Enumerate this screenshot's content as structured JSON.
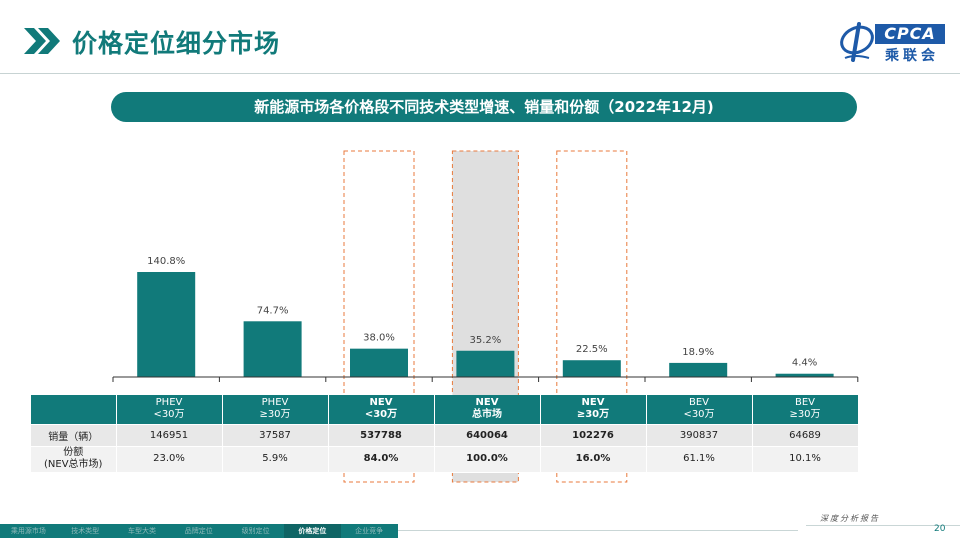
{
  "header": {
    "title": "价格定位细分市场",
    "logo_text": "CPCA",
    "logo_cn": "乘联会"
  },
  "banner": {
    "text": "新能源市场各价格段不同技术类型增速、销量和份额（2022年12月)"
  },
  "chart_data": {
    "type": "bar",
    "title": "",
    "categories": [
      "PHEV\n<30万",
      "PHEV\n≥30万",
      "NEV\n<30万",
      "NEV\n总市场",
      "NEV\n≥30万",
      "BEV\n<30万",
      "BEV\n≥30万"
    ],
    "values": [
      140.8,
      74.7,
      38.0,
      35.2,
      22.5,
      18.9,
      4.4
    ],
    "data_labels": [
      "140.8%",
      "74.7%",
      "38.0%",
      "35.2%",
      "22.5%",
      "18.9%",
      "4.4%"
    ],
    "unit": "%",
    "ylim": [
      0,
      160
    ],
    "grid": false,
    "highlight_dashed": [
      2,
      4
    ],
    "highlight_shaded": [
      3
    ],
    "bar_color": "#117a7a",
    "highlight_color": "#e87a3c"
  },
  "table": {
    "headers": [
      {
        "line1": "PHEV",
        "line2": "<30万",
        "bold": false
      },
      {
        "line1": "PHEV",
        "line2": "≥30万",
        "bold": false
      },
      {
        "line1": "NEV",
        "line2": "<30万",
        "bold": true
      },
      {
        "line1": "NEV",
        "line2": "总市场",
        "bold": true
      },
      {
        "line1": "NEV",
        "line2": "≥30万",
        "bold": true
      },
      {
        "line1": "BEV",
        "line2": "<30万",
        "bold": false
      },
      {
        "line1": "BEV",
        "line2": "≥30万",
        "bold": false
      }
    ],
    "rows": [
      {
        "label": "销量（辆）",
        "values": [
          "146951",
          "37587",
          "537788",
          "640064",
          "102276",
          "390837",
          "64689"
        ]
      },
      {
        "label_line1": "份额",
        "label_line2": "(NEV总市场)",
        "values": [
          "23.0%",
          "5.9%",
          "84.0%",
          "100.0%",
          "16.0%",
          "61.1%",
          "10.1%"
        ]
      }
    ]
  },
  "footer": {
    "tabs": [
      "乘用源市场",
      "技术类型",
      "车型大类",
      "品牌定位",
      "级别定位",
      "价格定位",
      "企业竞争"
    ],
    "active_tab": 5,
    "report_label": "深度分析报告",
    "page_number": "20"
  }
}
